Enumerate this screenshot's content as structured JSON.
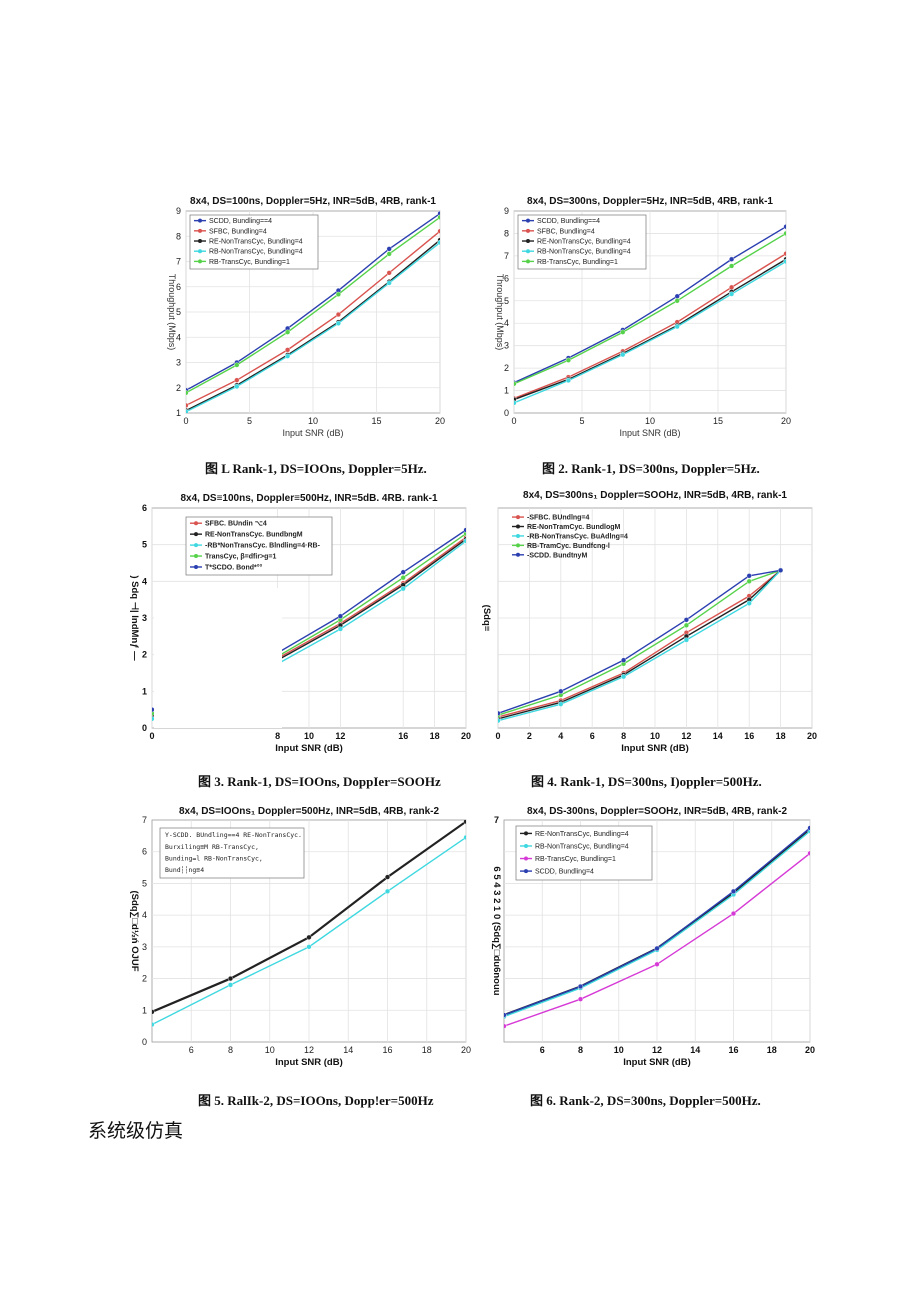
{
  "chart_data": [
    {
      "type": "line",
      "title": "8x4, DS=100ns, Doppler=5Hz, INR=5dB, 4RB, rank-1",
      "xlabel": "Input SNR (dB)",
      "ylabel": "Throughput (Mbps)",
      "xlim": [
        0,
        20
      ],
      "ylim": [
        1,
        9
      ],
      "xticks": [
        "0",
        "5",
        "10",
        "15",
        "20"
      ],
      "yticks": [
        "1",
        "2",
        "3",
        "4",
        "5",
        "6",
        "7",
        "8",
        "9"
      ],
      "legend": [
        "SCDD, Bundling==4",
        "SFBC, Bundling=4",
        "RE-NonTransCyc, Bundling=4",
        "RB-NonTransCyc, Bundling=4",
        "RB-TransCyc, Bundling=1"
      ],
      "series": [
        {
          "name": "SCDD, Bundling==4",
          "color": "#2b3fb0",
          "x": [
            0,
            4,
            8,
            12,
            16,
            20
          ],
          "values": [
            1.9,
            3.0,
            4.35,
            5.85,
            7.5,
            8.9
          ]
        },
        {
          "name": "SFBC, Bundling=4",
          "color": "#d9534f",
          "x": [
            0,
            4,
            8,
            12,
            16,
            20
          ],
          "values": [
            1.3,
            2.3,
            3.5,
            4.9,
            6.55,
            8.2
          ]
        },
        {
          "name": "RE-NonTransCyc, Bundling=4",
          "color": "#222222",
          "x": [
            0,
            4,
            8,
            12,
            16,
            20
          ],
          "values": [
            1.1,
            2.1,
            3.3,
            4.6,
            6.2,
            7.85
          ]
        },
        {
          "name": "RB-NonTransCyc, Bundling=4",
          "color": "#3fd8e0",
          "x": [
            0,
            4,
            8,
            12,
            16,
            20
          ],
          "values": [
            1.05,
            2.05,
            3.25,
            4.55,
            6.15,
            7.75
          ]
        },
        {
          "name": "RB-TransCyc, Bundling=1",
          "color": "#55d24a",
          "x": [
            0,
            4,
            8,
            12,
            16,
            20
          ],
          "values": [
            1.8,
            2.9,
            4.2,
            5.7,
            7.3,
            8.75
          ]
        }
      ]
    },
    {
      "type": "line",
      "title": "8x4, DS=300ns, Doppler=5Hz, INR=5dB, 4RB, rank-1",
      "xlabel": "Input SNR (dB)",
      "ylabel": "Throughput (Mbps)",
      "xlim": [
        0,
        20
      ],
      "ylim": [
        0,
        9
      ],
      "xticks": [
        "0",
        "5",
        "10",
        "15",
        "20"
      ],
      "yticks": [
        "0",
        "1",
        "2",
        "3",
        "4",
        "5",
        "6",
        "7",
        "8",
        "9"
      ],
      "legend": [
        "SCDD, Bundling==4",
        "SFBC, Bundling=4",
        "RE-NonTransCyc, Bundling=4",
        "RB-NonTransCyc, Bundling=4",
        "RB-TransCyc, Bundling=1"
      ],
      "series": [
        {
          "name": "SCDD, Bundling==4",
          "color": "#2b3fb0",
          "x": [
            0,
            4,
            8,
            12,
            16,
            20
          ],
          "values": [
            1.35,
            2.45,
            3.7,
            5.2,
            6.85,
            8.3
          ]
        },
        {
          "name": "SFBC, Bundling=4",
          "color": "#d9534f",
          "x": [
            0,
            4,
            8,
            12,
            16,
            20
          ],
          "values": [
            0.65,
            1.6,
            2.75,
            4.05,
            5.6,
            7.1
          ]
        },
        {
          "name": "RE-NonTransCyc, Bundling=4",
          "color": "#222222",
          "x": [
            0,
            4,
            8,
            12,
            16,
            20
          ],
          "values": [
            0.6,
            1.5,
            2.65,
            3.9,
            5.4,
            6.85
          ]
        },
        {
          "name": "RB-NonTransCyc, Bundling=4",
          "color": "#3fd8e0",
          "x": [
            0,
            4,
            8,
            12,
            16,
            20
          ],
          "values": [
            0.45,
            1.45,
            2.6,
            3.85,
            5.3,
            6.75
          ]
        },
        {
          "name": "RB-TransCyc, Bundling=1",
          "color": "#55d24a",
          "x": [
            0,
            4,
            8,
            12,
            16,
            20
          ],
          "values": [
            1.3,
            2.35,
            3.6,
            5.0,
            6.55,
            8.0
          ]
        }
      ]
    },
    {
      "type": "line",
      "title": "8x4, DS≡100ns, Doppler≡500Hz, INR=5dB. 4RB. rank-1",
      "xlabel": "Input SNR (dB)",
      "ylabel": ") Sdq ⊣| lndMnƒ —",
      "xlim": [
        0,
        20
      ],
      "ylim": [
        0,
        6
      ],
      "xticks": [
        "0",
        "8",
        "10",
        "12",
        "16",
        "18",
        "20"
      ],
      "yticks": [
        "0",
        "1",
        "2",
        "3",
        "4",
        "5",
        "6"
      ],
      "legend": [
        "SFBC. BUndin ⌥4",
        "RE-NonTransCyc. BundbngM",
        "-RB*NonTransCyc. Blndling=4·RB-",
        "TransCyc, β=dfir>g=1",
        "T*SCDO. Bond*°°"
      ],
      "series": [
        {
          "name": "SFBC",
          "color": "#d9534f",
          "x": [
            0,
            8,
            12,
            16,
            20
          ],
          "values": [
            0.4,
            1.9,
            2.85,
            3.95,
            5.2
          ]
        },
        {
          "name": "RE-NonTransCyc",
          "color": "#222222",
          "x": [
            0,
            8,
            12,
            16,
            20
          ],
          "values": [
            0.35,
            1.85,
            2.8,
            3.9,
            5.15
          ]
        },
        {
          "name": "RB-NonTransCyc",
          "color": "#3fd8e0",
          "x": [
            0,
            8,
            12,
            16,
            20
          ],
          "values": [
            0.25,
            1.75,
            2.7,
            3.8,
            5.1
          ]
        },
        {
          "name": "RB-TransCyc",
          "color": "#55d24a",
          "x": [
            0,
            8,
            12,
            16,
            20
          ],
          "values": [
            0.4,
            1.95,
            2.95,
            4.1,
            5.3
          ]
        },
        {
          "name": "SCDD",
          "color": "#2b3fb0",
          "x": [
            0,
            8,
            12,
            16,
            20
          ],
          "values": [
            0.5,
            2.05,
            3.05,
            4.25,
            5.4
          ]
        }
      ]
    },
    {
      "type": "line",
      "title": "8x4, DS=300ns₁ Doppler=SOOHz, INR=5dB, 4RB, rank-1",
      "xlabel": "Input SNR (dB)",
      "ylabel": "(Sdq≡",
      "xlim": [
        0,
        20
      ],
      "ylim": [
        0,
        6
      ],
      "xticks": [
        "0",
        "2",
        "4",
        "6",
        "8",
        "10",
        "12",
        "14",
        "16",
        "18",
        "20"
      ],
      "yticks": [],
      "legend": [
        "-SFBC. BUndlng=4",
        "RE-NonTramCyc. BundlogM",
        "-RB-NonTransCyc. BuAdlng=4",
        "RB-TramCyc. Bundfcng-l",
        "-SCDD. BundtnyM"
      ],
      "series": [
        {
          "name": "SFBC",
          "color": "#d9534f",
          "x": [
            0,
            4,
            8,
            12,
            16,
            18
          ],
          "values": [
            0.3,
            0.75,
            1.5,
            2.6,
            3.6,
            4.3
          ]
        },
        {
          "name": "RE-NonTransCyc",
          "color": "#222222",
          "x": [
            0,
            4,
            8,
            12,
            16,
            18
          ],
          "values": [
            0.25,
            0.7,
            1.45,
            2.5,
            3.5,
            4.3
          ]
        },
        {
          "name": "RB-NonTransCyc",
          "color": "#3fd8e0",
          "x": [
            0,
            4,
            8,
            12,
            16,
            18
          ],
          "values": [
            0.2,
            0.65,
            1.4,
            2.4,
            3.4,
            4.3
          ]
        },
        {
          "name": "RB-TransCyc",
          "color": "#55d24a",
          "x": [
            0,
            4,
            8,
            12,
            16,
            18
          ],
          "values": [
            0.35,
            0.9,
            1.75,
            2.8,
            4.0,
            4.3
          ]
        },
        {
          "name": "SCDD",
          "color": "#2b3fb0",
          "x": [
            0,
            4,
            8,
            12,
            16,
            18
          ],
          "values": [
            0.4,
            1.0,
            1.85,
            2.95,
            4.15,
            4.3
          ]
        }
      ]
    },
    {
      "type": "line",
      "title": "8x4, DS=IOOns₁ Doppler=500Hz, INR=5dB, 4RB, rank-2",
      "xlabel": "Input SNR (dB)",
      "ylabel": "(Sdq∑□d½ń OJUF",
      "xlim": [
        4,
        20
      ],
      "ylim": [
        0,
        7
      ],
      "xticks": [
        "6",
        "8",
        "10",
        "12",
        "14",
        "16",
        "18",
        "20"
      ],
      "yticks": [
        "0",
        "1",
        "2",
        "3",
        "4",
        "5",
        "6",
        "7"
      ],
      "legend": [
        "Y-SCDD. BUndling==4 RE-NonTransCyc.",
        "Burxiling≡M RB-TransCyc,",
        "Bunding=l RB-NonTransCyc,",
        "Bund┆┆ng≡4"
      ],
      "series": [
        {
          "name": "SCDD",
          "color": "#222222",
          "x": [
            4,
            8,
            12,
            16,
            20
          ],
          "values": [
            0.95,
            2.0,
            3.3,
            5.2,
            6.95
          ]
        },
        {
          "name": "RB-NonTransCyc",
          "color": "#3fd8e0",
          "x": [
            4,
            8,
            12,
            16,
            20
          ],
          "values": [
            0.55,
            1.8,
            3.0,
            4.75,
            6.45
          ]
        }
      ]
    },
    {
      "type": "line",
      "title": "8x4, DS-300ns, Doppler=SOOHz, INR=5dB, 4RB, rank-2",
      "xlabel": "Input SNR (dB)",
      "ylabel": "6 5 4 3 2 1 0 (Sdq∑□du6nouu",
      "xlim": [
        4,
        20
      ],
      "ylim": [
        0,
        7
      ],
      "xticks": [
        "6",
        "8",
        "10",
        "12",
        "14",
        "16",
        "18",
        "20"
      ],
      "yticks": [
        "7"
      ],
      "legend": [
        "RE-NonTransCyc, Bundling=4",
        "RB-NonTransCyc, Bundling=4",
        "RB-TransCyc, Bundling=1",
        "SCDD, Bundling=4"
      ],
      "series": [
        {
          "name": "RE-NonTransCyc, Bundling=4",
          "color": "#222222",
          "x": [
            4,
            8,
            12,
            16,
            20
          ],
          "values": [
            0.85,
            1.75,
            2.95,
            4.7,
            6.7
          ]
        },
        {
          "name": "RB-NonTransCyc, Bundling=4",
          "color": "#3fd8e0",
          "x": [
            4,
            8,
            12,
            16,
            20
          ],
          "values": [
            0.8,
            1.7,
            2.9,
            4.65,
            6.65
          ]
        },
        {
          "name": "RB-TransCyc, Bundling=1",
          "color": "#d63ad6",
          "x": [
            4,
            8,
            12,
            16,
            20
          ],
          "values": [
            0.5,
            1.35,
            2.45,
            4.05,
            5.95
          ]
        },
        {
          "name": "SCDD, Bundling=4",
          "color": "#2b3fb0",
          "x": [
            4,
            8,
            12,
            16,
            20
          ],
          "values": [
            0.85,
            1.75,
            2.95,
            4.75,
            6.75
          ]
        }
      ]
    }
  ],
  "captions": [
    "图  L Rank-1, DS=IOOns, Doppler=5Hz.",
    "图 2. Rank-1, DS=300ns, Doppler=5Hz.",
    "图 3. Rank-1, DS=IOOns, DoppIer=SOOHz",
    "图 4. Rank-1, DS=300ns, I)oppler=500Hz.",
    "图 5. RalIk-2, DS=IOOns, Dopp!er=500Hz",
    "图 6. Rank-2, DS=300ns, Doppler=500Hz."
  ],
  "section_heading": "系统级仿真"
}
